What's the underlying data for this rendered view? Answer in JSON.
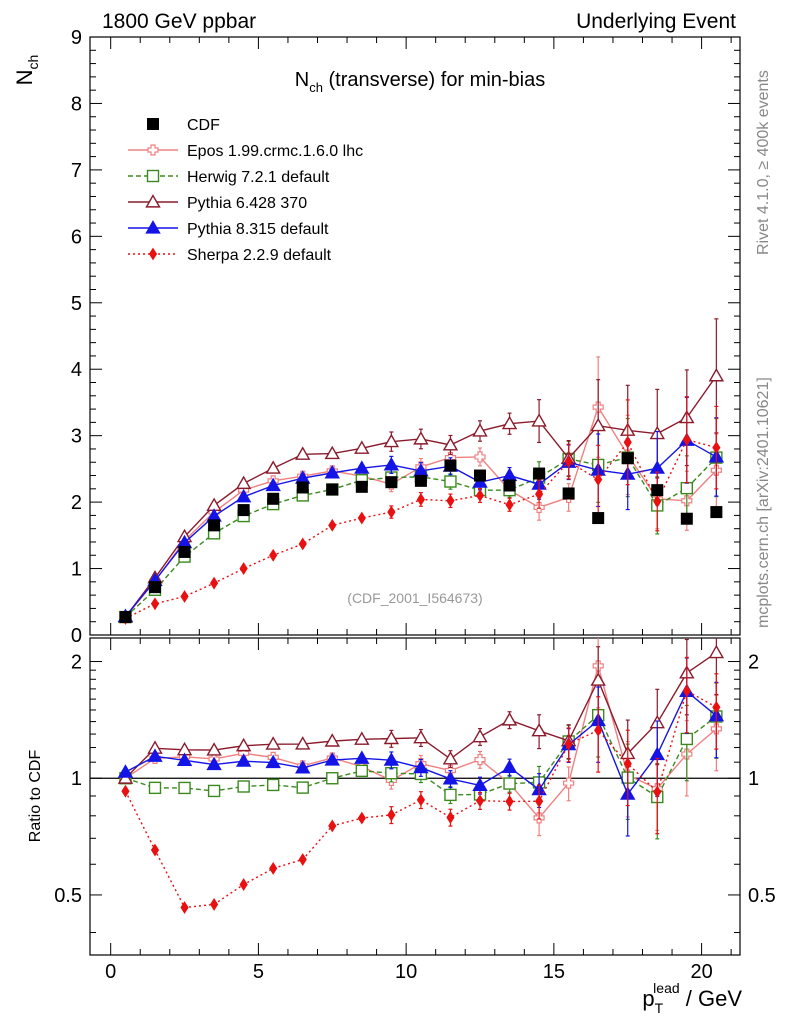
{
  "header": {
    "left": "1800 GeV ppbar",
    "right": "Underlying Event",
    "side_rivet": "Rivet 4.1.0, ≥ 400k events",
    "side_mcplots": "mcplots.cern.ch [arXiv:2401.10621]"
  },
  "chart_data": {
    "type": "line",
    "title_main": "N",
    "title_sub": "ch",
    "title_rest": " (transverse) for min-bias",
    "watermark": "(CDF_2001_I564673)",
    "ylabel_main": "N",
    "ylabel_sub": "ch",
    "xlabel_main": "p",
    "xlabel_sub": "T",
    "xlabel_sup": "lead",
    "xlabel_rest": " / GeV",
    "ratio_ylabel": "Ratio to CDF",
    "xlim": [
      -0.7,
      21.3
    ],
    "ylim": [
      0,
      9
    ],
    "ratio_ylim": [
      0.35,
      2.3
    ],
    "xticks": [
      "0",
      "5",
      "10",
      "15",
      "20"
    ],
    "yticks": [
      "0",
      "1",
      "2",
      "3",
      "4",
      "5",
      "6",
      "7",
      "8",
      "9"
    ],
    "ratio_yticks": [
      "0.5",
      "1",
      "2"
    ],
    "x": [
      0.5,
      1.5,
      2.5,
      3.5,
      4.5,
      5.5,
      6.5,
      7.5,
      8.5,
      9.5,
      10.5,
      11.5,
      12.5,
      13.5,
      14.5,
      15.5,
      16.5,
      17.5,
      18.5,
      19.5,
      20.5
    ],
    "data": {
      "name": "CDF",
      "values": [
        0.27,
        0.72,
        1.25,
        1.65,
        1.88,
        2.05,
        2.22,
        2.19,
        2.23,
        2.3,
        2.32,
        2.55,
        2.4,
        2.25,
        2.43,
        2.13,
        1.76,
        2.66,
        2.18,
        1.75,
        1.85
      ]
    },
    "series": [
      {
        "name": "Epos 1.99.crmc.1.6.0 lhc",
        "color": "#f08080",
        "marker": "open-cross",
        "dash": "",
        "values": [
          0.27,
          0.81,
          1.42,
          1.85,
          2.18,
          2.32,
          2.39,
          2.47,
          2.39,
          2.27,
          2.53,
          2.67,
          2.68,
          2.18,
          1.92,
          2.07,
          3.43,
          2.71,
          2.05,
          2.02,
          2.48
        ]
      },
      {
        "name": "Herwig 7.2.1 default",
        "color": "#3a8a1e",
        "marker": "open-square",
        "dash": "5,3",
        "values": [
          0.27,
          0.68,
          1.18,
          1.53,
          1.79,
          1.97,
          2.1,
          2.19,
          2.33,
          2.37,
          2.38,
          2.31,
          2.18,
          2.18,
          2.37,
          2.65,
          2.56,
          2.67,
          1.95,
          2.21,
          2.67
        ]
      },
      {
        "name": "Pythia 6.428 370",
        "color": "#8b1a2b",
        "marker": "open-triangle",
        "dash": "",
        "values": [
          0.27,
          0.86,
          1.48,
          1.95,
          2.28,
          2.51,
          2.72,
          2.73,
          2.81,
          2.91,
          2.95,
          2.86,
          3.07,
          3.18,
          3.22,
          2.66,
          3.15,
          3.08,
          3.03,
          3.27,
          3.9
        ]
      },
      {
        "name": "Pythia 8.315 default",
        "color": "#1414e6",
        "marker": "filled-triangle",
        "dash": "",
        "values": [
          0.28,
          0.82,
          1.39,
          1.79,
          2.08,
          2.25,
          2.36,
          2.44,
          2.51,
          2.56,
          2.47,
          2.54,
          2.3,
          2.4,
          2.27,
          2.6,
          2.48,
          2.42,
          2.51,
          2.93,
          2.68
        ]
      },
      {
        "name": "Sherpa 2.2.9 default",
        "color": "#e81010",
        "marker": "filled-diamond",
        "dash": "2,3",
        "values": [
          0.25,
          0.47,
          0.58,
          0.78,
          1.0,
          1.2,
          1.37,
          1.65,
          1.76,
          1.85,
          2.04,
          2.02,
          2.1,
          1.96,
          2.12,
          2.61,
          2.34,
          2.9,
          2.01,
          2.94,
          2.82
        ]
      }
    ]
  }
}
